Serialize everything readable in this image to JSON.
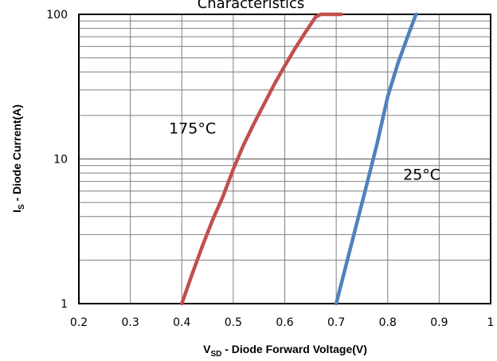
{
  "chart_data": {
    "type": "line",
    "title": "Characteristics",
    "xlabel": "V",
    "xlabel_sub": "SD",
    "xlabel_rest": " - Diode Forward Voltage(V)",
    "ylabel": "I",
    "ylabel_sub": "S",
    "ylabel_rest": " - Diode Current(A)",
    "xlim": [
      0.2,
      1.0
    ],
    "ylim": [
      1,
      100
    ],
    "yscale": "log",
    "grid": true,
    "x_ticks": [
      "0.2",
      "0.3",
      "0.4",
      "0.5",
      "0.6",
      "0.7",
      "0.8",
      "0.9",
      "1"
    ],
    "y_ticks": [
      "1",
      "10",
      "100"
    ],
    "series": [
      {
        "name": "175°C",
        "color": "#c0504d",
        "x": [
          0.4,
          0.42,
          0.44,
          0.46,
          0.48,
          0.5,
          0.52,
          0.54,
          0.56,
          0.58,
          0.6,
          0.62,
          0.64,
          0.66,
          0.67,
          0.71
        ],
        "y": [
          1.0,
          1.6,
          2.5,
          3.8,
          5.5,
          8.5,
          12.5,
          17.5,
          24,
          33,
          44,
          58,
          75,
          96,
          100,
          100
        ]
      },
      {
        "name": "25°C",
        "color": "#4f81bd",
        "x": [
          0.7,
          0.72,
          0.74,
          0.76,
          0.78,
          0.8,
          0.82,
          0.84,
          0.855
        ],
        "y": [
          1.0,
          1.9,
          3.6,
          6.8,
          13,
          27,
          46,
          72,
          100
        ]
      }
    ],
    "annotations": [
      {
        "text": "175°C",
        "series": "175°C",
        "x": 0.375,
        "y": 15
      },
      {
        "text": "25°C",
        "series": "25°C",
        "x": 0.83,
        "y": 7.2
      }
    ]
  }
}
